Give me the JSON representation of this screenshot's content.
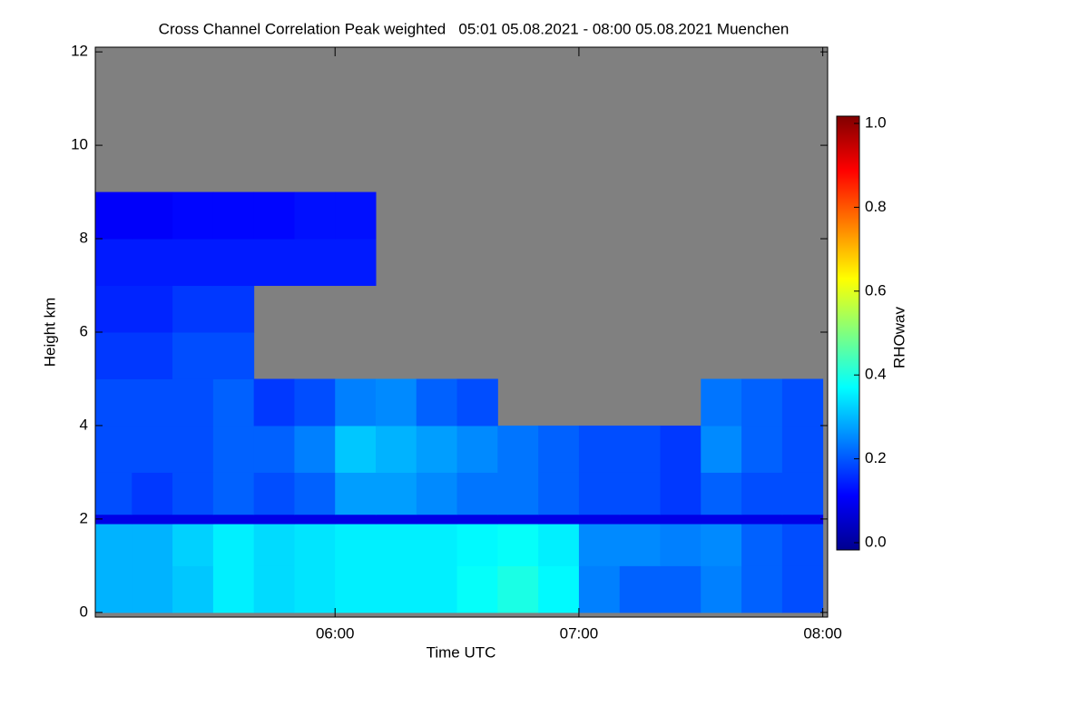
{
  "chart_data": {
    "type": "heatmap",
    "title": "Cross Channel Correlation Peak weighted   05:01 05.08.2021 - 08:00 05.08.2021 Muenchen",
    "xlabel": "Time UTC",
    "ylabel": "Height km",
    "colorbar_label": "RHOwav",
    "colormap": "jet",
    "missing_color": "#808080",
    "xlim": [
      5.0167,
      8.02
    ],
    "ylim": [
      -0.1,
      12.1
    ],
    "zlim": [
      0,
      1
    ],
    "xticks": [
      {
        "value": 6,
        "label": "06:00"
      },
      {
        "value": 7,
        "label": "07:00"
      },
      {
        "value": 8,
        "label": "08:00"
      }
    ],
    "yticks": [
      0,
      2,
      4,
      6,
      8,
      10,
      12
    ],
    "zticks": [
      {
        "value": 0,
        "label": "0.0"
      },
      0.2,
      0.4,
      0.6,
      0.8,
      {
        "value": 1,
        "label": "1.0"
      }
    ],
    "xbins": [
      5.0167,
      5.1667,
      5.3333,
      5.5,
      5.6667,
      5.8333,
      6,
      6.1667,
      6.3333,
      6.5,
      6.6667,
      6.8333,
      7,
      7.1667,
      7.3333,
      7.5,
      7.6667,
      7.8333,
      8
    ],
    "ybins": [
      0,
      1,
      1.9,
      2.1,
      3,
      4,
      5,
      6,
      7,
      8,
      9,
      10,
      12
    ],
    "z": [
      [
        0.3,
        0.3,
        0.32,
        0.36,
        0.34,
        0.35,
        0.36,
        0.36,
        0.36,
        0.38,
        0.4,
        0.37,
        0.25,
        0.22,
        0.22,
        0.25,
        0.22,
        0.2
      ],
      [
        0.3,
        0.3,
        0.33,
        0.36,
        0.34,
        0.35,
        0.36,
        0.36,
        0.36,
        0.37,
        0.38,
        0.36,
        0.26,
        0.26,
        0.25,
        0.26,
        0.22,
        0.2
      ],
      [
        0.1,
        0.1,
        0.1,
        0.1,
        0.1,
        0.1,
        0.1,
        0.1,
        0.1,
        0.1,
        0.1,
        0.1,
        0.1,
        0.1,
        0.1,
        0.1,
        0.1,
        0.1
      ],
      [
        0.2,
        0.18,
        0.2,
        0.22,
        0.2,
        0.22,
        0.28,
        0.28,
        0.26,
        0.24,
        0.24,
        0.22,
        0.2,
        0.2,
        0.18,
        0.22,
        0.2,
        0.2
      ],
      [
        0.2,
        0.2,
        0.2,
        0.22,
        0.22,
        0.25,
        0.32,
        0.3,
        0.28,
        0.26,
        0.24,
        0.22,
        0.2,
        0.2,
        0.18,
        0.26,
        0.22,
        0.2
      ],
      [
        0.2,
        0.2,
        0.2,
        0.22,
        0.18,
        0.2,
        0.25,
        0.26,
        0.22,
        0.2,
        null,
        null,
        null,
        null,
        null,
        0.24,
        0.22,
        0.2
      ],
      [
        0.18,
        0.18,
        0.2,
        0.2,
        null,
        null,
        null,
        null,
        null,
        null,
        null,
        null,
        null,
        null,
        null,
        null,
        null,
        null
      ],
      [
        0.16,
        0.16,
        0.18,
        0.18,
        null,
        null,
        null,
        null,
        null,
        null,
        null,
        null,
        null,
        null,
        null,
        null,
        null,
        null
      ],
      [
        0.15,
        0.15,
        0.15,
        0.15,
        0.15,
        0.15,
        0.15,
        null,
        null,
        null,
        null,
        null,
        null,
        null,
        null,
        null,
        null,
        null
      ],
      [
        0.12,
        0.12,
        0.13,
        0.13,
        0.13,
        0.14,
        0.14,
        null,
        null,
        null,
        null,
        null,
        null,
        null,
        null,
        null,
        null,
        null
      ],
      [
        null,
        null,
        null,
        null,
        null,
        null,
        null,
        null,
        null,
        null,
        null,
        null,
        null,
        null,
        null,
        null,
        null,
        null
      ],
      [
        null,
        null,
        null,
        null,
        null,
        null,
        null,
        null,
        null,
        null,
        null,
        null,
        null,
        null,
        null,
        null,
        null,
        null
      ]
    ]
  }
}
